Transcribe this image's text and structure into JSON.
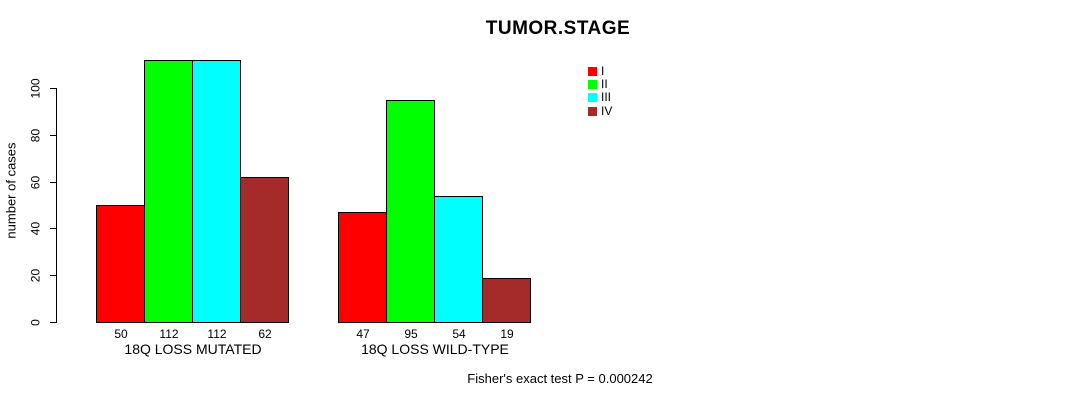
{
  "chart_data": {
    "type": "bar",
    "title": "TUMOR.STAGE",
    "ylabel": "number of cases",
    "xlabel": "",
    "yticks": [
      0,
      20,
      40,
      60,
      80,
      100
    ],
    "ylim": [
      0,
      112
    ],
    "grid": false,
    "legend_position": "top-right",
    "categories": [
      "18Q LOSS MUTATED",
      "18Q LOSS WILD-TYPE"
    ],
    "series": [
      {
        "name": "I",
        "color": "#FF0000",
        "values": [
          50,
          47
        ]
      },
      {
        "name": "II",
        "color": "#00FF00",
        "values": [
          112,
          95
        ]
      },
      {
        "name": "III",
        "color": "#00FFFF",
        "values": [
          112,
          54
        ]
      },
      {
        "name": "IV",
        "color": "#A52A2A",
        "values": [
          62,
          19
        ]
      }
    ],
    "bar_value_labels": {
      "18Q LOSS MUTATED": [
        50,
        112,
        112,
        62
      ],
      "18Q LOSS WILD-TYPE": [
        47,
        95,
        54,
        19
      ]
    },
    "annotation": "Fisher's exact test P = 0.000242"
  },
  "colors": {
    "background": "#FFFFFF",
    "axis": "#000000",
    "text": "#000000",
    "stage_I": "#FF0000",
    "stage_II": "#00FF00",
    "stage_III": "#00FFFF",
    "stage_IV": "#A52A2A"
  }
}
